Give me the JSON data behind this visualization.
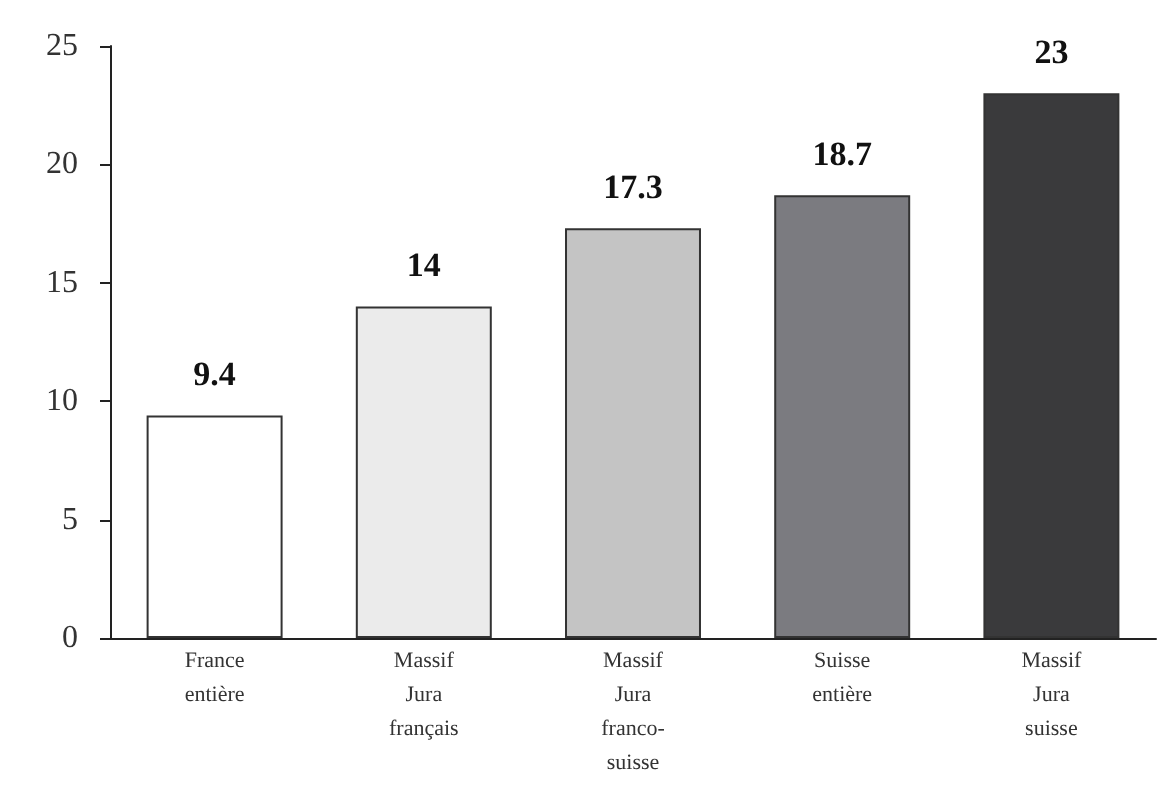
{
  "chart_data": {
    "type": "bar",
    "categories": [
      "France\nentière",
      "Massif\nJura\nfrançais",
      "Massif\nJura\nfranco-\nsuisse",
      "Suisse\nentière",
      "Massif\nJura\nsuisse"
    ],
    "values": [
      9.4,
      14,
      17.3,
      18.7,
      23
    ],
    "colors": [
      "#ffffff",
      "#ebebeb",
      "#c4c4c4",
      "#7b7b80",
      "#3a3a3c"
    ],
    "ylim": [
      0,
      25
    ],
    "yticks": [
      0,
      5,
      10,
      15,
      20,
      25
    ],
    "data_labels": true
  }
}
